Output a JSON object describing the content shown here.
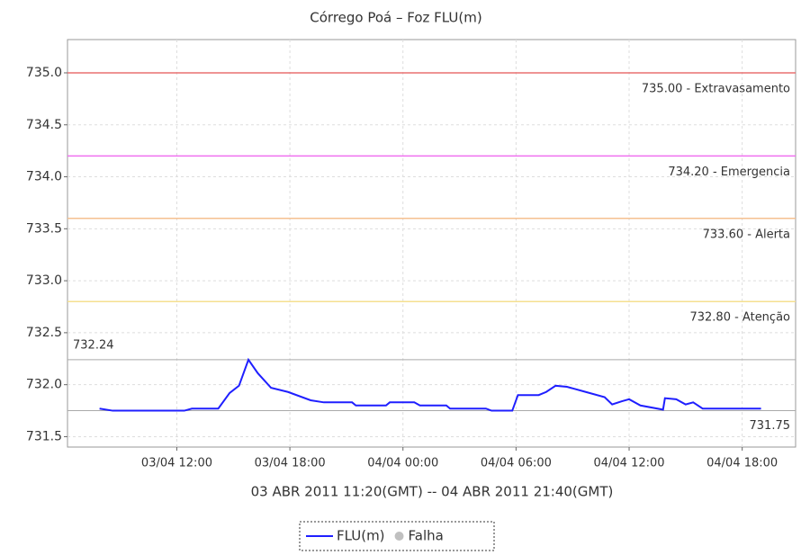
{
  "chart_data": {
    "type": "line",
    "title": "Córrego Poá – Foz FLU(m)",
    "x_label": "03 ABR 2011 11:20(GMT) -- 04 ABR 2011 21:40(GMT)",
    "x": [
      "03/04 07:54",
      "03/04 08:36",
      "03/04 12:24",
      "03/04 12:48",
      "03/04 14:12",
      "03/04 14:48",
      "03/04 15:18",
      "03/04 15:48",
      "03/04 16:18",
      "03/04 17:00",
      "03/04 17:54",
      "03/04 19:06",
      "03/04 19:48",
      "03/04 21:18",
      "03/04 21:30",
      "03/04 23:06",
      "03/04 23:18",
      "04/04 00:36",
      "04/04 00:54",
      "04/04 02:18",
      "04/04 02:30",
      "04/04 04:24",
      "04/04 04:42",
      "04/04 05:48",
      "04/04 06:06",
      "04/04 07:12",
      "04/04 07:36",
      "04/04 08:06",
      "04/04 08:42",
      "04/04 09:42",
      "04/04 10:42",
      "04/04 11:06",
      "04/04 11:36",
      "04/04 12:00",
      "04/04 12:36",
      "04/04 13:48",
      "04/04 13:54",
      "04/04 14:30",
      "04/04 15:00",
      "04/04 15:24",
      "04/04 15:54",
      "04/04 19:00"
    ],
    "series": [
      {
        "name": "FLU(m)",
        "color": "#1f1fff",
        "values": [
          731.77,
          731.75,
          731.75,
          731.77,
          731.77,
          731.92,
          731.99,
          732.24,
          732.11,
          731.97,
          731.93,
          731.85,
          731.83,
          731.83,
          731.8,
          731.8,
          731.83,
          731.83,
          731.8,
          731.8,
          731.77,
          731.77,
          731.75,
          731.75,
          731.9,
          731.9,
          731.93,
          731.99,
          731.98,
          731.93,
          731.88,
          731.81,
          731.84,
          731.86,
          731.8,
          731.76,
          731.87,
          731.86,
          731.81,
          731.83,
          731.77,
          731.77
        ]
      }
    ],
    "legend_items": [
      {
        "name": "Falha",
        "color": "#c0c0c0"
      }
    ],
    "xlim": [
      "03/04 06:12",
      "04/04 20:50"
    ],
    "xticks": [
      "03/04 12:00",
      "03/04 18:00",
      "04/04 00:00",
      "04/04 06:00",
      "04/04 12:00",
      "04/04 18:00"
    ],
    "ylim": [
      731.4,
      735.32
    ],
    "yticks": [
      731.5,
      {
        "value": 732,
        "label": "732.0"
      },
      732.5,
      {
        "value": 733,
        "label": "733.0"
      },
      733.5,
      {
        "value": 734,
        "label": "734.0"
      },
      734.5,
      {
        "value": 735,
        "label": "735.0"
      }
    ],
    "thresholds": [
      {
        "value": 735,
        "label": "735.00 - Extravasamento",
        "color": "#e87070"
      },
      {
        "value": 734.2,
        "label": "734.20 - Emergencia",
        "color": "#f070f0"
      },
      {
        "value": 733.6,
        "label": "733.60 - Alerta",
        "color": "#f5c090"
      },
      {
        "value": 732.8,
        "label": "732.80 - Atenção",
        "color": "#f5e090"
      }
    ],
    "max": {
      "value": 732.24,
      "label": "732.24"
    },
    "min": {
      "value": 731.75,
      "label": "731.75"
    },
    "grid": true
  }
}
